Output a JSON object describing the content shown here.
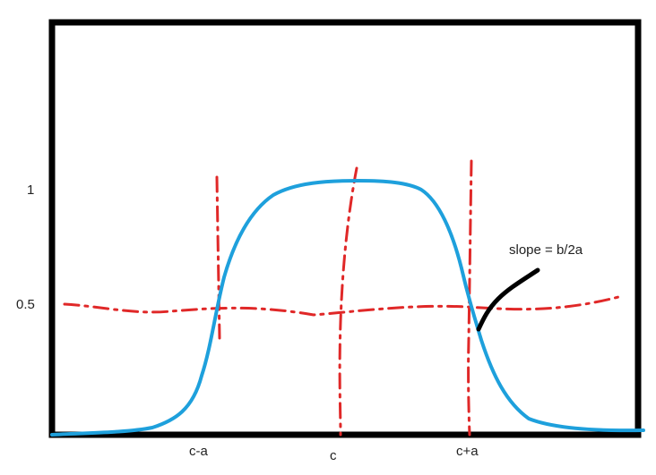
{
  "labels": {
    "y_one": "1",
    "y_half": "0.5",
    "x_left": "c-a",
    "x_center": "c",
    "x_right": "c+a",
    "annotation": "slope = b/2a"
  },
  "colors": {
    "frame": "#000000",
    "curve": "#1ea0dc",
    "guides": "#e02828",
    "annotation_stroke": "#000000"
  }
}
